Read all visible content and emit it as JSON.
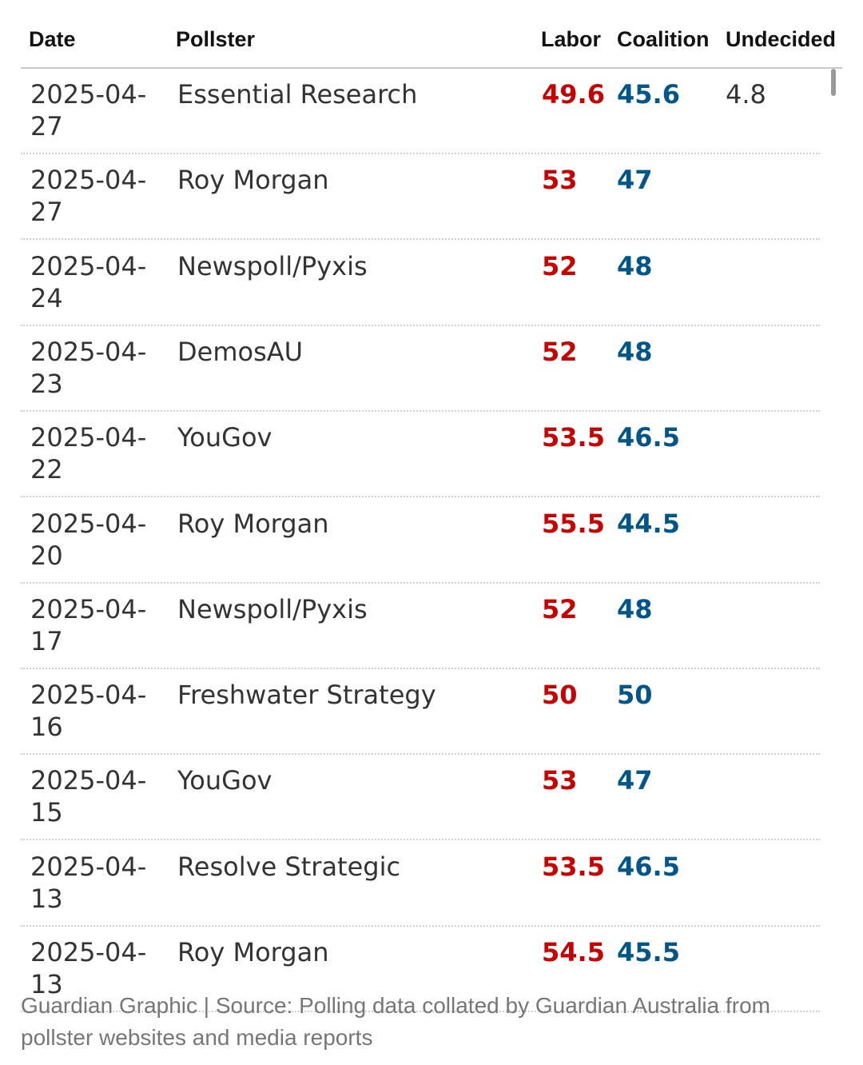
{
  "colors": {
    "labor": "#c70000",
    "coalition": "#005689",
    "text": "#333333",
    "source": "#767676"
  },
  "chart_data": {
    "type": "table",
    "columns": [
      "Date",
      "Pollster",
      "Labor",
      "Coalition",
      "Undecided"
    ],
    "rows": [
      {
        "date": "2025-04-27",
        "pollster": "Essential Research",
        "labor": "49.6",
        "coalition": "45.6",
        "undecided": "4.8"
      },
      {
        "date": "2025-04-27",
        "pollster": "Roy Morgan",
        "labor": "53",
        "coalition": "47",
        "undecided": ""
      },
      {
        "date": "2025-04-24",
        "pollster": "Newspoll/Pyxis",
        "labor": "52",
        "coalition": "48",
        "undecided": ""
      },
      {
        "date": "2025-04-23",
        "pollster": "DemosAU",
        "labor": "52",
        "coalition": "48",
        "undecided": ""
      },
      {
        "date": "2025-04-22",
        "pollster": "YouGov",
        "labor": "53.5",
        "coalition": "46.5",
        "undecided": ""
      },
      {
        "date": "2025-04-20",
        "pollster": "Roy Morgan",
        "labor": "55.5",
        "coalition": "44.5",
        "undecided": ""
      },
      {
        "date": "2025-04-17",
        "pollster": "Newspoll/Pyxis",
        "labor": "52",
        "coalition": "48",
        "undecided": ""
      },
      {
        "date": "2025-04-16",
        "pollster": "Freshwater Strategy",
        "labor": "50",
        "coalition": "50",
        "undecided": ""
      },
      {
        "date": "2025-04-15",
        "pollster": "YouGov",
        "labor": "53",
        "coalition": "47",
        "undecided": ""
      },
      {
        "date": "2025-04-13",
        "pollster": "Resolve Strategic",
        "labor": "53.5",
        "coalition": "46.5",
        "undecided": ""
      },
      {
        "date": "2025-04-13",
        "pollster": "Roy Morgan",
        "labor": "54.5",
        "coalition": "45.5",
        "undecided": ""
      }
    ],
    "source": "Guardian Graphic | Source: Polling data collated by Guardian Australia from pollster websites and media reports"
  }
}
